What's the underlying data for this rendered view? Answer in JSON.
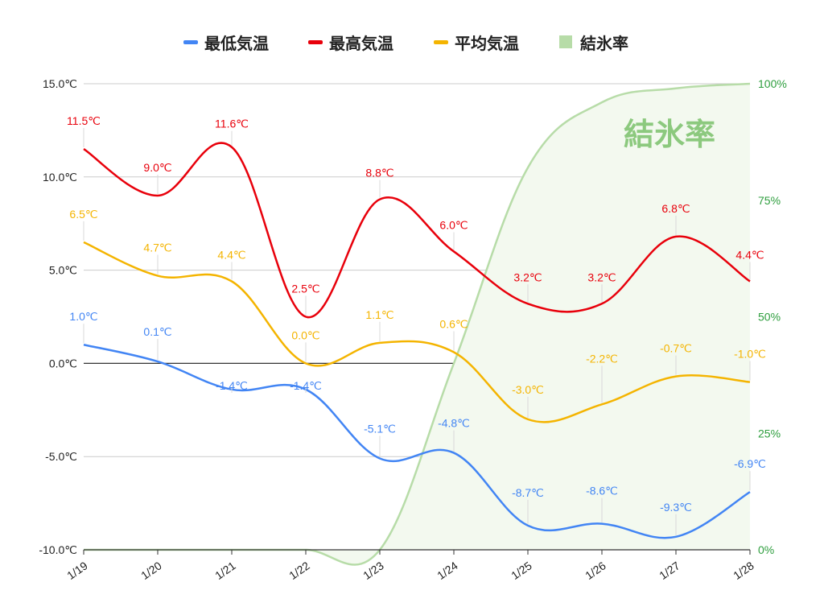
{
  "chart_data": {
    "type": "line",
    "categories": [
      "1/19",
      "1/20",
      "1/21",
      "1/22",
      "1/23",
      "1/24",
      "1/25",
      "1/26",
      "1/27",
      "1/28"
    ],
    "series": [
      {
        "name": "最低気温",
        "axis": "left",
        "color": "#4285f4",
        "values": [
          1.0,
          0.1,
          -1.4,
          -1.4,
          -5.1,
          -4.8,
          -8.7,
          -8.6,
          -9.3,
          -6.9
        ],
        "labels": [
          "1.0℃",
          "0.1℃",
          "-1.4℃",
          "-1.4℃",
          "-5.1℃",
          "-4.8℃",
          "-8.7℃",
          "-8.6℃",
          "-9.3℃",
          "-6.9℃"
        ]
      },
      {
        "name": "最高気温",
        "axis": "left",
        "color": "#e8000b",
        "values": [
          11.5,
          9.0,
          11.6,
          2.5,
          8.8,
          6.0,
          3.2,
          3.2,
          6.8,
          4.4
        ],
        "labels": [
          "11.5℃",
          "9.0℃",
          "11.6℃",
          "2.5℃",
          "8.8℃",
          "6.0℃",
          "3.2℃",
          "3.2℃",
          "6.8℃",
          "4.4℃"
        ]
      },
      {
        "name": "平均気温",
        "axis": "left",
        "color": "#f4b400",
        "values": [
          6.5,
          4.7,
          4.4,
          0.0,
          1.1,
          0.6,
          -3.0,
          -2.2,
          -0.7,
          -1.0
        ],
        "labels": [
          "6.5℃",
          "4.7℃",
          "4.4℃",
          "0.0℃",
          "1.1℃",
          "0.6℃",
          "-3.0℃",
          "-2.2℃",
          "-0.7℃",
          "-1.0℃"
        ]
      },
      {
        "name": "結氷率",
        "axis": "right",
        "type": "area",
        "color": "#b7dca8",
        "values": [
          0,
          0,
          0,
          0,
          0,
          40,
          82,
          96,
          99,
          100
        ],
        "labels": []
      }
    ],
    "left_axis": {
      "min": -10,
      "max": 15,
      "ticks": [
        "-10.0℃",
        "-5.0℃",
        "0.0℃",
        "5.0℃",
        "10.0℃",
        "15.0℃"
      ]
    },
    "right_axis": {
      "min": 0,
      "max": 100,
      "ticks": [
        "0%",
        "25%",
        "50%",
        "75%",
        "100%"
      ]
    },
    "annotation": "結氷率",
    "legend_position": "top",
    "grid": true
  }
}
